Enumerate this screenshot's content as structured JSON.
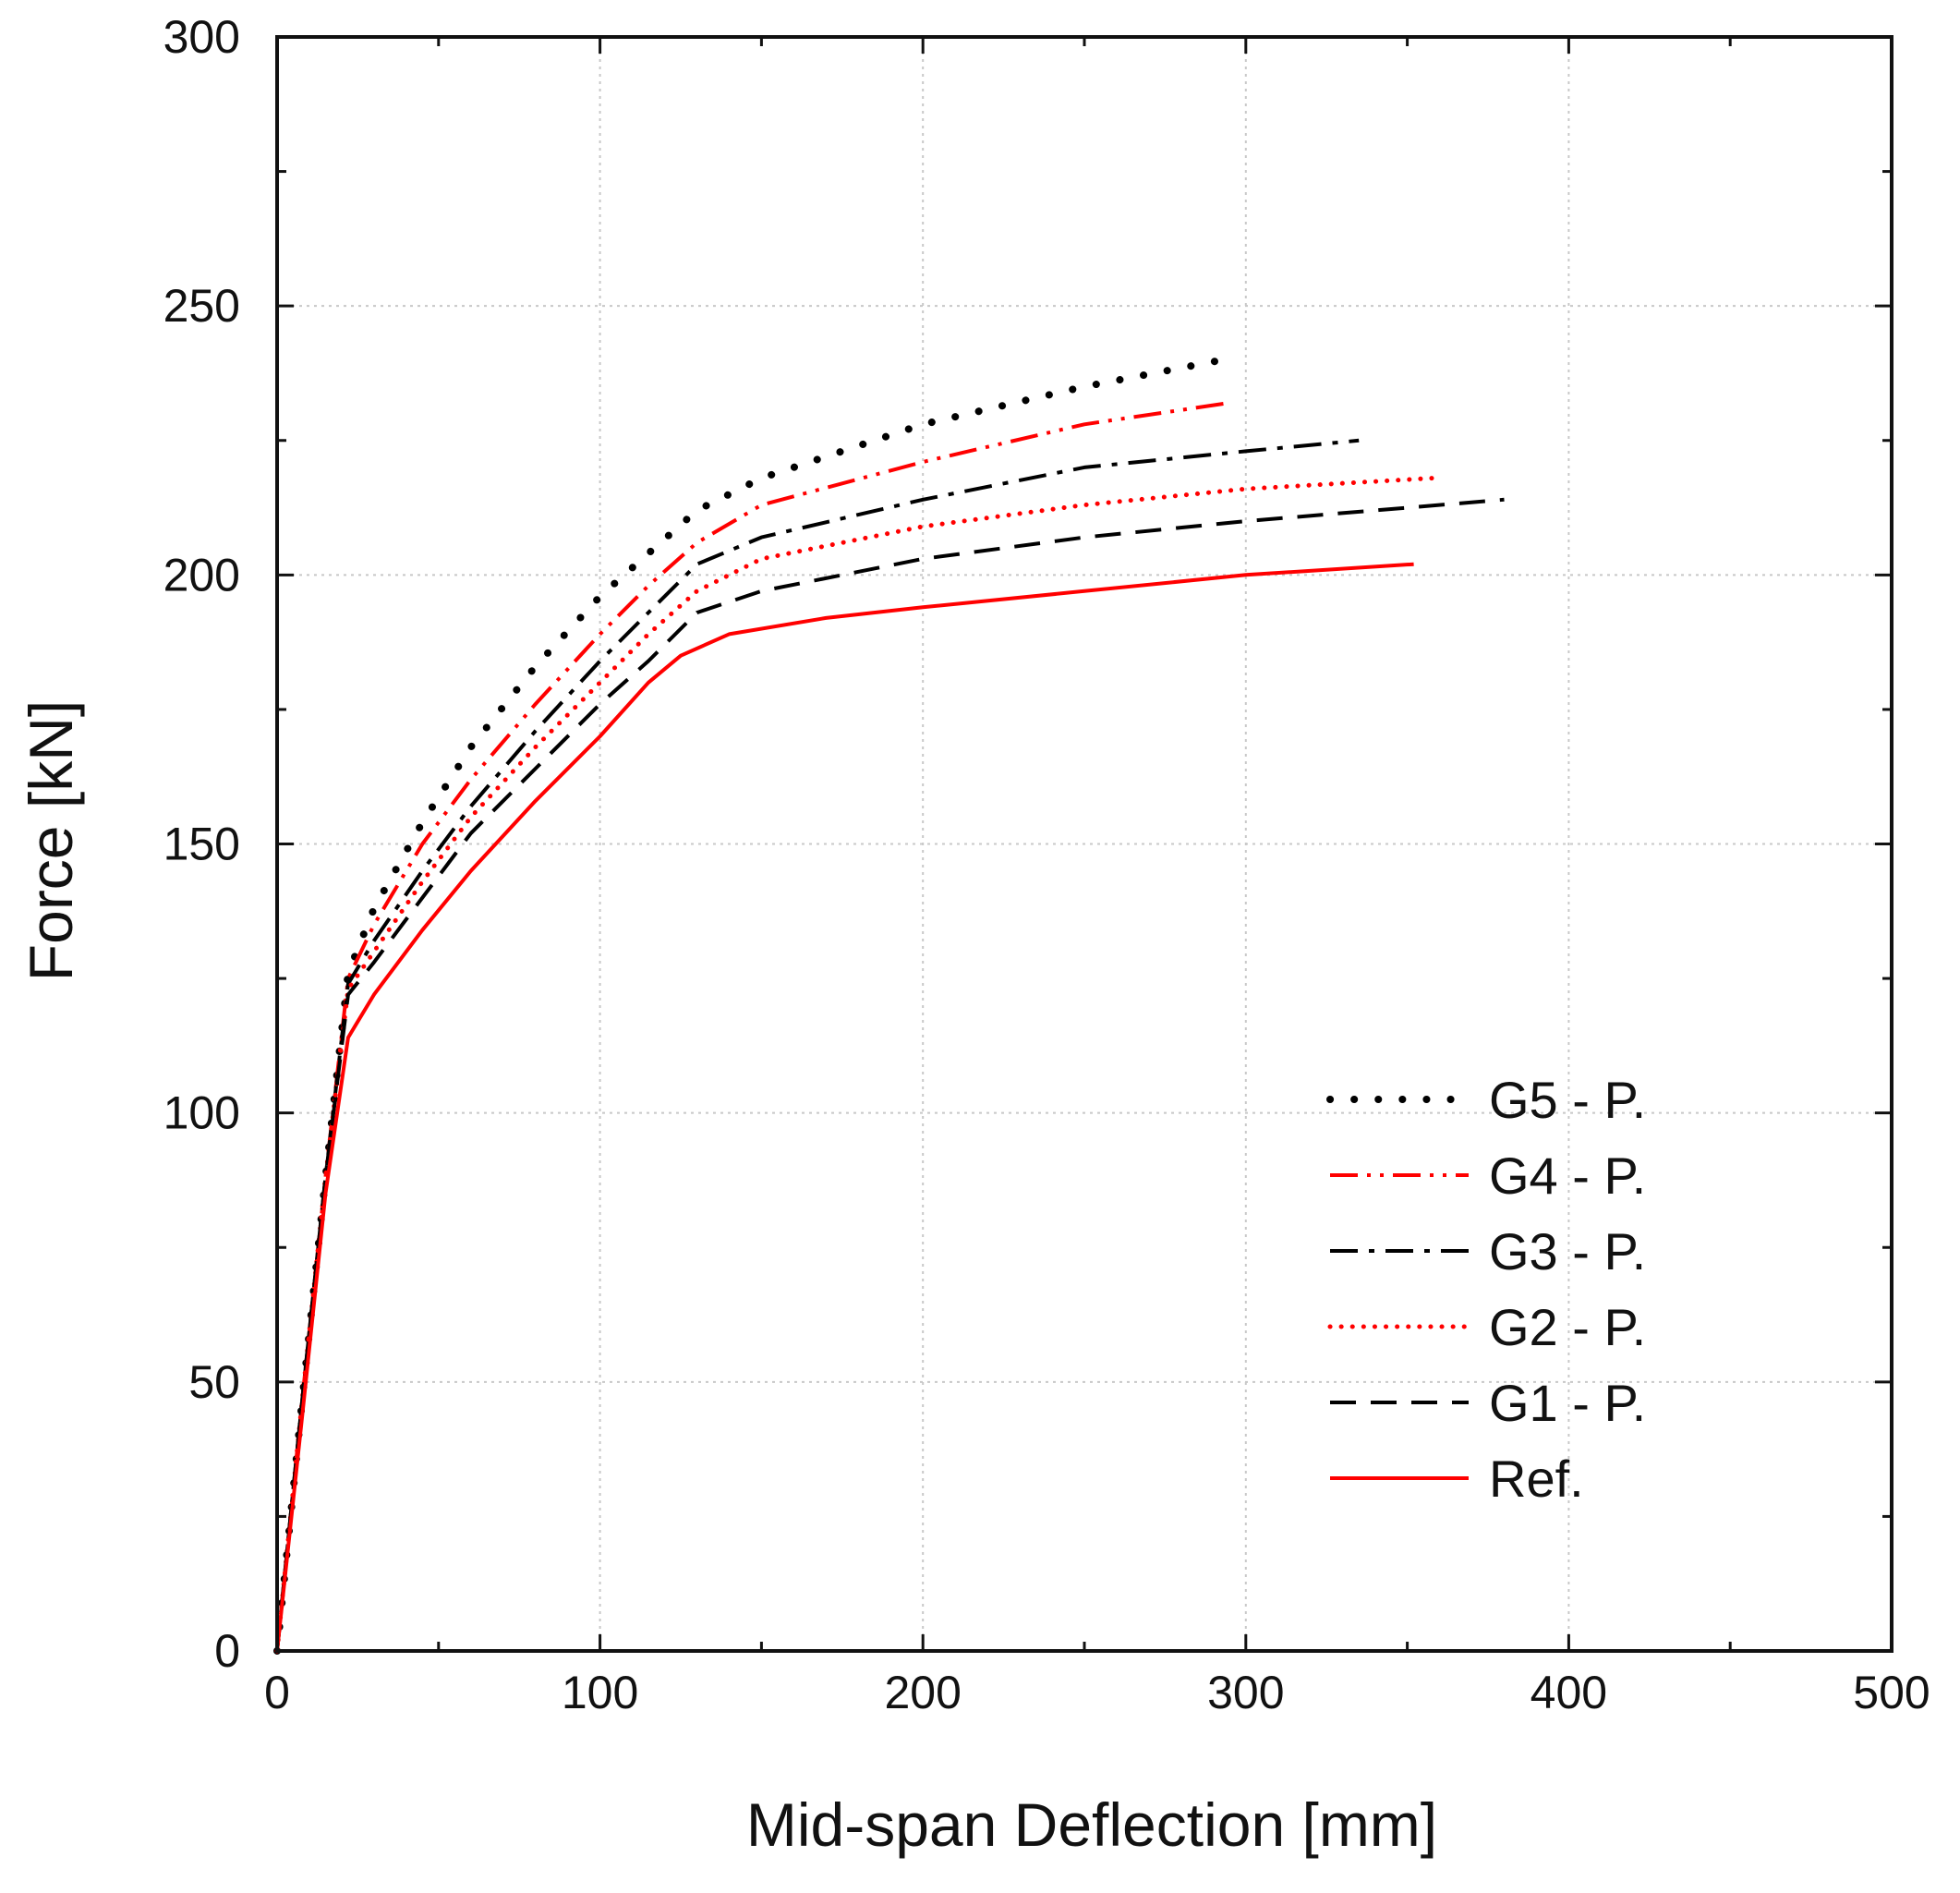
{
  "chart_data": {
    "type": "line",
    "title": "",
    "xlabel": "Mid-span Deflection [mm]",
    "ylabel": "Force [kN]",
    "xlim": [
      0,
      500
    ],
    "ylim": [
      0,
      300
    ],
    "x_ticks": [
      0,
      100,
      200,
      300,
      400,
      500
    ],
    "y_ticks": [
      0,
      50,
      100,
      150,
      200,
      250,
      300
    ],
    "x_tick_labels": [
      "0",
      "100",
      "200",
      "300",
      "400",
      "500"
    ],
    "y_tick_labels": [
      "0",
      "50",
      "100",
      "150",
      "200",
      "250",
      "300"
    ],
    "grid": true,
    "legend_position": "lower-right",
    "series": [
      {
        "name": "G5 - P.",
        "color": "#000000",
        "style": "dotted-coarse",
        "points": [
          [
            0,
            0
          ],
          [
            8,
            48
          ],
          [
            15,
            88
          ],
          [
            22,
            126
          ],
          [
            30,
            138
          ],
          [
            45,
            154
          ],
          [
            60,
            168
          ],
          [
            80,
            183
          ],
          [
            100,
            196
          ],
          [
            115,
            204
          ],
          [
            130,
            212
          ],
          [
            150,
            218
          ],
          [
            200,
            228
          ],
          [
            250,
            235
          ],
          [
            293,
            240
          ]
        ]
      },
      {
        "name": "G4 - P.",
        "color": "#ff0000",
        "style": "dash-dot-dot",
        "points": [
          [
            0,
            0
          ],
          [
            8,
            48
          ],
          [
            15,
            88
          ],
          [
            22,
            125
          ],
          [
            30,
            135
          ],
          [
            45,
            150
          ],
          [
            60,
            162
          ],
          [
            80,
            176
          ],
          [
            100,
            189
          ],
          [
            115,
            198
          ],
          [
            130,
            206
          ],
          [
            150,
            213
          ],
          [
            200,
            221
          ],
          [
            250,
            228
          ],
          [
            295,
            232
          ]
        ]
      },
      {
        "name": "G3 - P.",
        "color": "#000000",
        "style": "dash-dot",
        "points": [
          [
            0,
            0
          ],
          [
            8,
            48
          ],
          [
            15,
            88
          ],
          [
            22,
            124
          ],
          [
            30,
            132
          ],
          [
            45,
            145
          ],
          [
            60,
            157
          ],
          [
            80,
            171
          ],
          [
            100,
            184
          ],
          [
            115,
            193
          ],
          [
            130,
            202
          ],
          [
            150,
            207
          ],
          [
            200,
            214
          ],
          [
            250,
            220
          ],
          [
            300,
            223
          ],
          [
            335,
            225
          ]
        ]
      },
      {
        "name": "G2 - P.",
        "color": "#ff0000",
        "style": "dotted-fine",
        "points": [
          [
            0,
            0
          ],
          [
            8,
            48
          ],
          [
            15,
            88
          ],
          [
            22,
            123
          ],
          [
            30,
            130
          ],
          [
            45,
            143
          ],
          [
            60,
            155
          ],
          [
            80,
            168
          ],
          [
            100,
            180
          ],
          [
            115,
            189
          ],
          [
            130,
            197
          ],
          [
            150,
            203
          ],
          [
            200,
            209
          ],
          [
            250,
            213
          ],
          [
            300,
            216
          ],
          [
            358,
            218
          ]
        ]
      },
      {
        "name": "G1 - P.",
        "color": "#000000",
        "style": "dashed",
        "points": [
          [
            0,
            0
          ],
          [
            8,
            48
          ],
          [
            15,
            88
          ],
          [
            22,
            122
          ],
          [
            30,
            128
          ],
          [
            45,
            140
          ],
          [
            60,
            152
          ],
          [
            80,
            164
          ],
          [
            100,
            176
          ],
          [
            115,
            184
          ],
          [
            130,
            193
          ],
          [
            150,
            197
          ],
          [
            200,
            203
          ],
          [
            250,
            207
          ],
          [
            300,
            210
          ],
          [
            380,
            214
          ]
        ]
      },
      {
        "name": "Ref.",
        "color": "#ff0000",
        "style": "solid",
        "points": [
          [
            0,
            0
          ],
          [
            8,
            45
          ],
          [
            15,
            85
          ],
          [
            22,
            114
          ],
          [
            30,
            122
          ],
          [
            45,
            134
          ],
          [
            60,
            145
          ],
          [
            80,
            158
          ],
          [
            100,
            170
          ],
          [
            115,
            180
          ],
          [
            125,
            185
          ],
          [
            140,
            189
          ],
          [
            170,
            192
          ],
          [
            200,
            194
          ],
          [
            250,
            197
          ],
          [
            300,
            200
          ],
          [
            352,
            202
          ]
        ]
      }
    ]
  }
}
